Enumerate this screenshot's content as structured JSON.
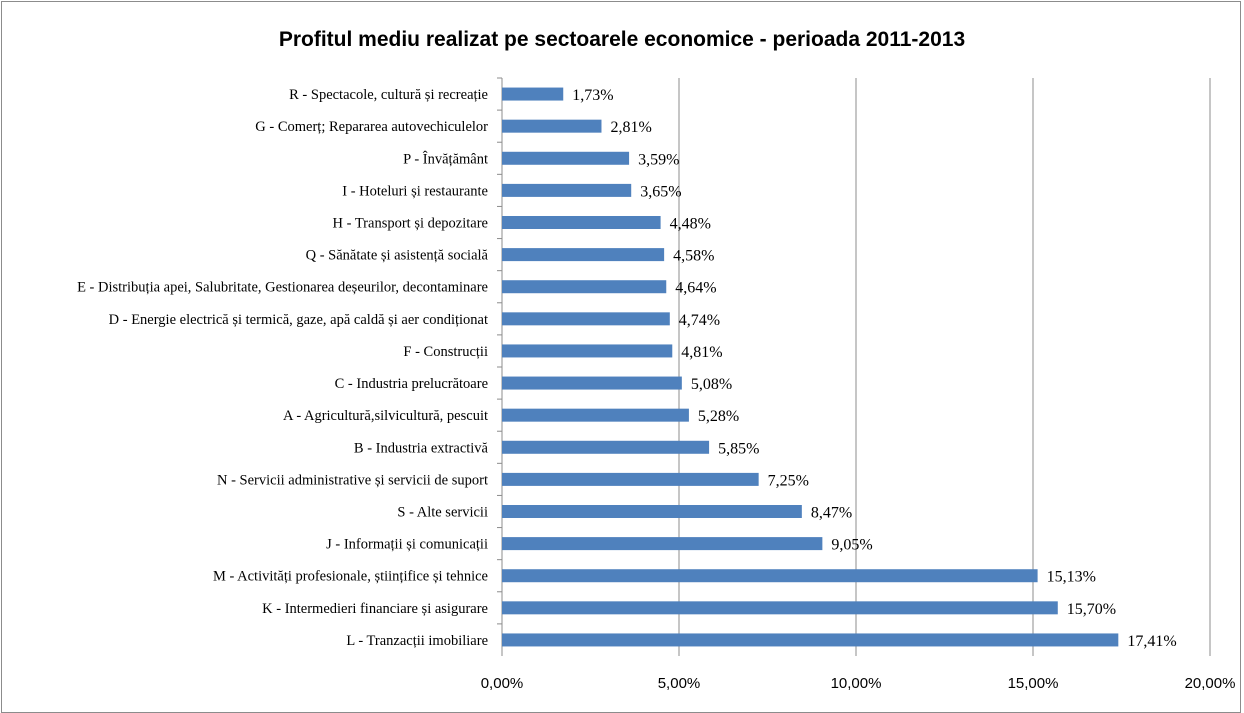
{
  "chart_data": {
    "type": "bar",
    "orientation": "horizontal",
    "title": "Profitul mediu realizat pe sectoarele economice - perioada 2011-2013",
    "categories": [
      "R - Spectacole, cultură și recreație",
      "G - Comerț; Repararea autovechiculelor",
      "P - Învățământ",
      "I - Hoteluri și restaurante",
      "H - Transport și depozitare",
      "Q - Sănătate și asistență socială",
      "E - Distribuția apei, Salubritate, Gestionarea deșeurilor, decontaminare",
      "D - Energie electrică și termică, gaze, apă caldă și aer condiționat",
      "F - Construcții",
      "C - Industria prelucrătoare",
      "A - Agricultură,silvicultură, pescuit",
      "B - Industria extractivă",
      "N - Servicii administrative și servicii de suport",
      "S - Alte servicii",
      "J - Informații și comunicații",
      "M - Activități profesionale, științifice și tehnice",
      "K - Intermedieri financiare și asigurare",
      "L - Tranzacții imobiliare"
    ],
    "values": [
      1.73,
      2.81,
      3.59,
      3.65,
      4.48,
      4.58,
      4.64,
      4.74,
      4.81,
      5.08,
      5.28,
      5.85,
      7.25,
      8.47,
      9.05,
      15.13,
      15.7,
      17.41
    ],
    "value_labels": [
      "1,73%",
      "2,81%",
      "3,59%",
      "3,65%",
      "4,48%",
      "4,58%",
      "4,64%",
      "4,74%",
      "4,81%",
      "5,08%",
      "5,28%",
      "5,85%",
      "7,25%",
      "8,47%",
      "9,05%",
      "15,13%",
      "15,70%",
      "17,41%"
    ],
    "xlim": [
      0,
      20
    ],
    "xticks": [
      0,
      5,
      10,
      15,
      20
    ],
    "xtick_labels": [
      "0,00%",
      "5,00%",
      "10,00%",
      "15,00%",
      "20,00%"
    ],
    "xlabel": "",
    "ylabel": "",
    "grid": "vertical",
    "legend": "none",
    "bar_color": "#4f81bd",
    "grid_color": "#8c8c8c"
  }
}
